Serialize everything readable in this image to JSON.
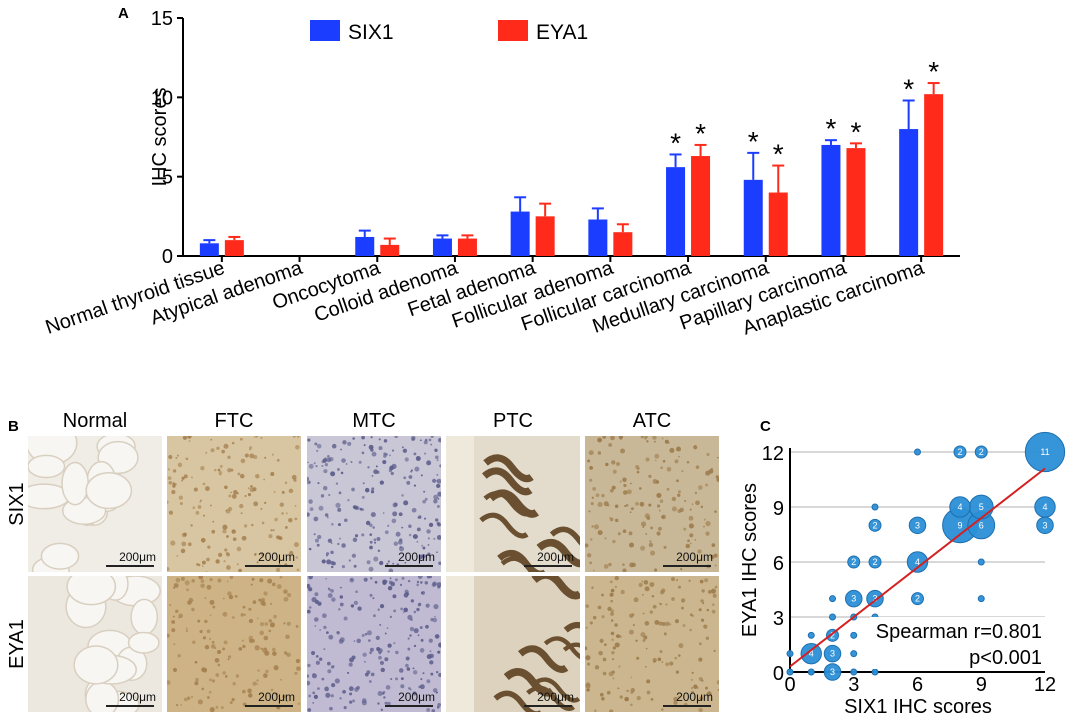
{
  "panels": {
    "a_letter": "A",
    "b_letter": "B",
    "c_letter": "C"
  },
  "colors": {
    "six1": "#1a3dff",
    "eya1": "#ff2a1a",
    "bubble": "#2b8fd6",
    "bubble_stroke": "#1d6fb0",
    "trend": "#d42020",
    "grid": "#b0b0b0"
  },
  "chart_data": [
    {
      "type": "bar",
      "title": "",
      "ylabel": "IHC scores",
      "xlabel": "",
      "ylim": [
        0,
        15
      ],
      "yticks": [
        0,
        5,
        10,
        15
      ],
      "legend": {
        "placement": "top-center",
        "entries": [
          "SIX1",
          "EYA1"
        ]
      },
      "categories": [
        "Normal thyroid tissue",
        "Atypical adenoma",
        "Oncocytoma",
        "Colloid adenoma",
        "Fetal adenoma",
        "Follicular adenoma",
        "Follicular carcinoma",
        "Medullary carcinoma",
        "Papillary carcinoma",
        "Anaplastic carcinoma"
      ],
      "series": [
        {
          "name": "SIX1",
          "values": [
            0.8,
            null,
            1.2,
            1.1,
            2.8,
            2.3,
            5.6,
            4.8,
            7.0,
            8.0
          ],
          "errors": [
            0.2,
            null,
            0.4,
            0.2,
            0.9,
            0.7,
            0.8,
            1.7,
            0.3,
            1.8
          ],
          "significant": [
            false,
            false,
            false,
            false,
            false,
            false,
            true,
            true,
            true,
            true
          ]
        },
        {
          "name": "EYA1",
          "values": [
            1.0,
            null,
            0.7,
            1.1,
            2.5,
            1.5,
            6.3,
            4.0,
            6.8,
            10.2
          ],
          "errors": [
            0.2,
            null,
            0.4,
            0.2,
            0.8,
            0.5,
            0.7,
            1.7,
            0.3,
            0.7
          ],
          "significant": [
            false,
            false,
            false,
            false,
            false,
            false,
            true,
            true,
            true,
            true
          ]
        }
      ],
      "significance_marker": "*"
    },
    {
      "type": "scatter",
      "title": "",
      "xlabel": "SIX1 IHC scores",
      "ylabel": "EYA1 IHC scores",
      "xlim": [
        0,
        12
      ],
      "ylim": [
        0,
        12
      ],
      "xticks": [
        0,
        3,
        6,
        9,
        12
      ],
      "yticks": [
        0,
        3,
        6,
        9,
        12
      ],
      "points": [
        {
          "x": 12,
          "y": 12,
          "n": 11
        },
        {
          "x": 9,
          "y": 8,
          "n": 6
        },
        {
          "x": 8,
          "y": 8,
          "n": 9
        },
        {
          "x": 8,
          "y": 9,
          "n": 4
        },
        {
          "x": 9,
          "y": 9,
          "n": 5
        },
        {
          "x": 12,
          "y": 9,
          "n": 4
        },
        {
          "x": 12,
          "y": 8,
          "n": 3
        },
        {
          "x": 6,
          "y": 6,
          "n": 4
        },
        {
          "x": 6,
          "y": 8,
          "n": 3
        },
        {
          "x": 4,
          "y": 8,
          "n": 2
        },
        {
          "x": 8,
          "y": 12,
          "n": 2
        },
        {
          "x": 9,
          "y": 12,
          "n": 2
        },
        {
          "x": 6,
          "y": 12,
          "n": 1
        },
        {
          "x": 4,
          "y": 9,
          "n": 1
        },
        {
          "x": 3,
          "y": 6,
          "n": 2
        },
        {
          "x": 4,
          "y": 6,
          "n": 2
        },
        {
          "x": 9,
          "y": 6,
          "n": 1
        },
        {
          "x": 3,
          "y": 4,
          "n": 3
        },
        {
          "x": 4,
          "y": 4,
          "n": 3
        },
        {
          "x": 6,
          "y": 4,
          "n": 2
        },
        {
          "x": 9,
          "y": 4,
          "n": 1
        },
        {
          "x": 2,
          "y": 4,
          "n": 1
        },
        {
          "x": 2,
          "y": 3,
          "n": 1
        },
        {
          "x": 3,
          "y": 3,
          "n": 1
        },
        {
          "x": 4,
          "y": 3,
          "n": 1
        },
        {
          "x": 1,
          "y": 2,
          "n": 1
        },
        {
          "x": 2,
          "y": 2,
          "n": 2
        },
        {
          "x": 1,
          "y": 1,
          "n": 4
        },
        {
          "x": 2,
          "y": 1,
          "n": 3
        },
        {
          "x": 2,
          "y": 0,
          "n": 3
        },
        {
          "x": 3,
          "y": 2,
          "n": 1
        },
        {
          "x": 3,
          "y": 1,
          "n": 1
        },
        {
          "x": 4,
          "y": 2,
          "n": 1
        },
        {
          "x": 0,
          "y": 1,
          "n": 1
        },
        {
          "x": 1,
          "y": 0,
          "n": 1
        },
        {
          "x": 3,
          "y": 0,
          "n": 1
        },
        {
          "x": 4,
          "y": 0,
          "n": 1
        },
        {
          "x": 0,
          "y": 0,
          "n": 1
        }
      ],
      "trendline": {
        "from": [
          0,
          0.3
        ],
        "to": [
          12,
          11.1
        ]
      },
      "annotations": [
        "Spearman r=0.801",
        "p<0.001"
      ]
    }
  ],
  "micrographs": {
    "columns": [
      "Normal",
      "FTC",
      "MTC",
      "PTC",
      "ATC"
    ],
    "rows": [
      "SIX1",
      "EYA1"
    ],
    "scale_bar": "200μm"
  }
}
